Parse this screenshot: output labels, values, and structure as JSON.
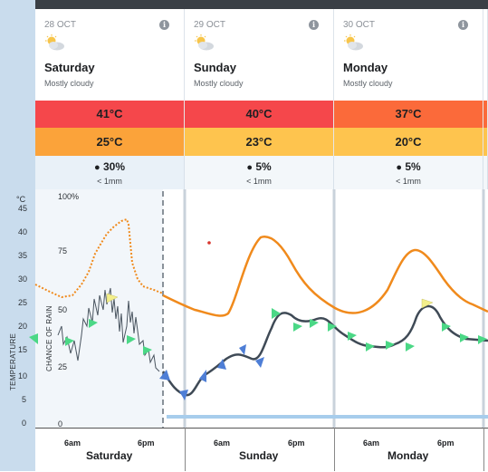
{
  "days": [
    {
      "date": "28 OCT",
      "name": "Saturday",
      "desc": "Mostly cloudy",
      "icon": "partly-cloudy-icon",
      "max": "41°C",
      "min": "25°C",
      "rain_pct": "30%",
      "rain_amt": "< 1mm",
      "max_color": "#f5474b",
      "min_color": "#fba33a"
    },
    {
      "date": "29 OCT",
      "name": "Sunday",
      "desc": "Mostly cloudy",
      "icon": "partly-cloudy-icon",
      "max": "40°C",
      "min": "23°C",
      "rain_pct": "5%",
      "rain_amt": "< 1mm",
      "max_color": "#f5474b",
      "min_color": "#fec44e"
    },
    {
      "date": "30 OCT",
      "name": "Monday",
      "desc": "Mostly cloudy",
      "icon": "partly-cloudy-icon",
      "max": "37°C",
      "min": "20°C",
      "rain_pct": "5%",
      "rain_amt": "< 1mm",
      "max_color": "#fb6a3a",
      "min_color": "#fec44e"
    }
  ],
  "axis": {
    "temp_unit": "°C",
    "temp_title": "TEMPERATURE",
    "rain_title": "CHANCE OF RAIN",
    "temp_ticks": [
      "45",
      "40",
      "35",
      "30",
      "25",
      "20",
      "15",
      "10",
      "5",
      "0"
    ],
    "rain_ticks": [
      "100%",
      "75",
      "50",
      "25",
      "0"
    ],
    "x_ticks": [
      "6am",
      "6pm",
      "6am",
      "6pm",
      "6am",
      "6pm"
    ],
    "x_days": [
      "Saturday",
      "Sunday",
      "Monday"
    ]
  },
  "colors": {
    "temperature": "#f08a1c",
    "temperature_observed": "#4a5560",
    "rain_area": "#a7cdec",
    "wind_fast": "#4e7ed6",
    "wind_mid": "#4bd886",
    "wind_slow": "#f3ef8b",
    "panel_bg": "#e9f1f8",
    "left_strip": "#c9dced"
  }
}
